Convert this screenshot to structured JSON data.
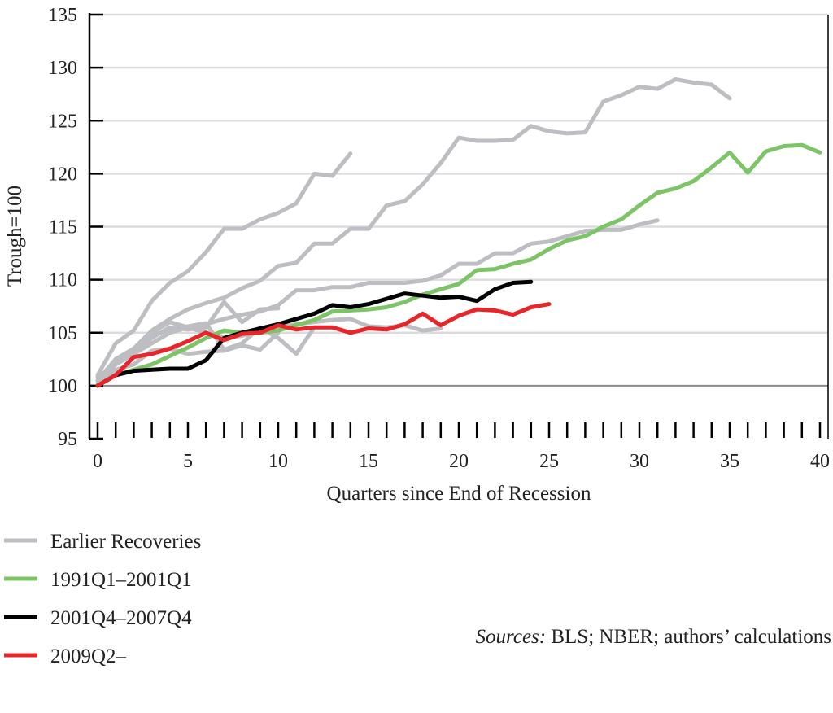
{
  "chart_data": {
    "type": "line",
    "xlabel": "Quarters since End of Recession",
    "ylabel": "Trough=100",
    "xlim": [
      0,
      40
    ],
    "ylim": [
      95,
      135
    ],
    "xticks": [
      0,
      5,
      10,
      15,
      20,
      25,
      30,
      35,
      40
    ],
    "yticks": [
      95,
      100,
      105,
      110,
      115,
      120,
      125,
      130,
      135
    ],
    "grid": true,
    "legend_position": "bottom-left",
    "source": {
      "label": "Sources:",
      "text": " BLS; NBER; authors’ calculations"
    },
    "legend": [
      {
        "name": "Earlier Recoveries",
        "color": "#bdbec2"
      },
      {
        "name": "1991Q1–2001Q1",
        "color": "#7dc466"
      },
      {
        "name": "2001Q4–2007Q4",
        "color": "#000000"
      },
      {
        "name": "2009Q2–",
        "color": "#e8262a"
      }
    ],
    "earlier_recoveries": [
      {
        "values": [
          101,
          104,
          105.2,
          108,
          109.7,
          110.8,
          112.6,
          114.8,
          114.8,
          115.7,
          116.3,
          117.2,
          120,
          119.8,
          121.9
        ]
      },
      {
        "values": [
          100.5,
          102.5,
          103.5,
          105.2,
          106.3,
          107.2,
          107.8,
          108.3,
          109.2,
          109.9,
          111.3,
          111.6,
          113.4,
          113.4,
          114.8,
          114.8,
          117,
          117.4,
          119,
          121,
          123.4,
          123.1,
          123.1,
          123.2,
          124.5,
          124,
          123.8,
          123.9,
          126.8,
          127.4,
          128.2,
          128,
          128.9,
          128.6,
          128.4,
          127.1
        ]
      },
      {
        "values": [
          100.5,
          102,
          103,
          104,
          105,
          105.5,
          105.8,
          106.3,
          106.7,
          107,
          107.6,
          109,
          109,
          109.3,
          109.3,
          109.7,
          109.7,
          109.7,
          109.9,
          110.4,
          111.5,
          111.5,
          112.5,
          112.5,
          113.4,
          113.6,
          114.1,
          114.6,
          114.7,
          114.7,
          115.2,
          115.6
        ]
      },
      {
        "values": [
          100.5,
          102,
          103.5,
          105,
          106,
          105.5,
          105,
          104.5,
          104.7,
          105.3,
          105.5,
          105.8,
          106,
          106.2,
          106.3,
          105.6,
          105.5,
          105.7,
          105.2,
          105.4
        ]
      },
      {
        "values": [
          100.8,
          102,
          103,
          104.5,
          105.5,
          105.3,
          105.5,
          107.9,
          106,
          107.2,
          107.3
        ]
      },
      {
        "values": [
          100.3,
          102.5,
          103.5,
          104.8,
          105.2,
          105.6,
          105.9,
          103.4,
          104,
          105.5,
          104.5,
          103,
          105.5
        ]
      },
      {
        "values": [
          100,
          101.5,
          102,
          103.3,
          103.5,
          103,
          103.2,
          103.3,
          103.8,
          103.4,
          105
        ]
      }
    ],
    "series": [
      {
        "name": "1991Q1–2001Q1",
        "color": "#7dc466",
        "values": [
          100,
          101,
          101.5,
          102,
          102.8,
          103.6,
          104.5,
          105.2,
          105,
          105,
          105.2,
          105.7,
          106.2,
          107,
          107.1,
          107.2,
          107.4,
          107.9,
          108.6,
          109.1,
          109.6,
          110.9,
          111,
          111.5,
          111.9,
          112.9,
          113.7,
          114.1,
          115,
          115.7,
          117,
          118.2,
          118.6,
          119.3,
          120.6,
          122,
          120.1,
          122.1,
          122.6,
          122.7,
          122
        ]
      },
      {
        "name": "2001Q4–2007Q4",
        "color": "#000000",
        "values": [
          100,
          101,
          101.4,
          101.5,
          101.6,
          101.6,
          102.4,
          104.5,
          105,
          105.4,
          105.8,
          106.3,
          106.8,
          107.6,
          107.4,
          107.7,
          108.2,
          108.7,
          108.5,
          108.3,
          108.4,
          108,
          109.1,
          109.7,
          109.8
        ]
      },
      {
        "name": "2009Q2–",
        "color": "#e8262a",
        "values": [
          100,
          101,
          102.7,
          103,
          103.5,
          104.2,
          105,
          104.3,
          104.9,
          105,
          105.7,
          105.3,
          105.5,
          105.5,
          105,
          105.4,
          105.3,
          105.8,
          106.8,
          105.7,
          106.6,
          107.2,
          107.1,
          106.7,
          107.4,
          107.7
        ]
      }
    ]
  }
}
